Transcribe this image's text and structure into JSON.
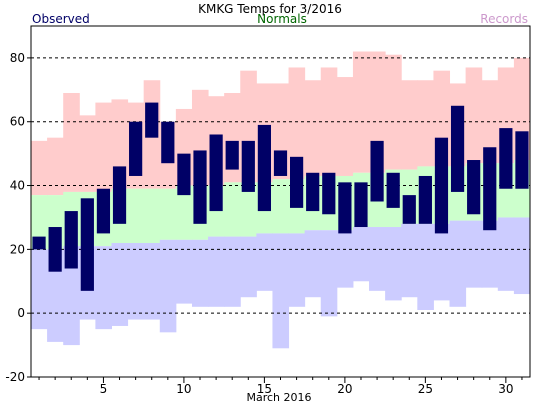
{
  "header": {
    "title": "KMKG Temps for 3/2016",
    "legend_observed": "Observed",
    "legend_normals": "Normals",
    "legend_records": "Records"
  },
  "colors": {
    "observed": "#000066",
    "normals_label": "#006600",
    "records_label": "#cc99cc",
    "record_high": "#ffcccc",
    "normal_range": "#ccffcc",
    "record_low": "#ccccff",
    "grid": "#000000"
  },
  "chart_data": {
    "type": "bar",
    "title": "KMKG Temps for 3/2016",
    "xlabel": "March 2016",
    "ylabel": "",
    "ylim": [
      -20,
      90
    ],
    "xlim": [
      0.5,
      31.5
    ],
    "yticks": [
      -20,
      0,
      20,
      40,
      60,
      80
    ],
    "xticks": [
      5,
      10,
      15,
      20,
      25,
      30
    ],
    "grid": true,
    "days": [
      1,
      2,
      3,
      4,
      5,
      6,
      7,
      8,
      9,
      10,
      11,
      12,
      13,
      14,
      15,
      16,
      17,
      18,
      19,
      20,
      21,
      22,
      23,
      24,
      25,
      26,
      27,
      28,
      29,
      30,
      31
    ],
    "series": [
      {
        "name": "Records",
        "role": "record_high",
        "values": [
          54,
          55,
          69,
          62,
          66,
          67,
          66,
          73,
          60,
          64,
          70,
          68,
          69,
          76,
          72,
          72,
          77,
          73,
          77,
          74,
          82,
          82,
          81,
          73,
          73,
          76,
          72,
          77,
          73,
          77,
          80
        ]
      },
      {
        "name": "Normals",
        "role": "normal_high",
        "values": [
          37,
          37,
          38,
          38,
          38,
          39,
          39,
          39,
          39,
          40,
          40,
          40,
          41,
          41,
          41,
          42,
          42,
          43,
          43,
          43,
          44,
          44,
          45,
          45,
          46,
          46,
          46,
          47,
          47,
          47,
          48
        ]
      },
      {
        "name": "Normals",
        "role": "normal_low",
        "values": [
          20,
          20,
          21,
          21,
          21,
          22,
          22,
          22,
          23,
          23,
          23,
          24,
          24,
          24,
          25,
          25,
          25,
          26,
          26,
          26,
          27,
          27,
          27,
          28,
          28,
          28,
          29,
          29,
          29,
          30,
          30
        ]
      },
      {
        "name": "Records",
        "role": "record_low",
        "values": [
          -5,
          -9,
          -10,
          -2,
          -5,
          -4,
          -2,
          -2,
          -6,
          3,
          2,
          2,
          2,
          5,
          7,
          -11,
          2,
          5,
          -1,
          8,
          10,
          7,
          4,
          5,
          1,
          4,
          2,
          8,
          8,
          7,
          6
        ]
      },
      {
        "name": "Observed",
        "role": "observed_high",
        "values": [
          24,
          27,
          32,
          36,
          39,
          46,
          60,
          66,
          60,
          50,
          51,
          56,
          54,
          54,
          59,
          51,
          49,
          44,
          44,
          41,
          41,
          54,
          44,
          37,
          43,
          55,
          65,
          48,
          52,
          58,
          57
        ]
      },
      {
        "name": "Observed",
        "role": "observed_low",
        "values": [
          20,
          13,
          14,
          7,
          25,
          28,
          43,
          55,
          47,
          37,
          28,
          32,
          45,
          38,
          32,
          43,
          33,
          32,
          31,
          25,
          27,
          35,
          33,
          28,
          28,
          25,
          38,
          31,
          26,
          39,
          39
        ]
      }
    ]
  }
}
